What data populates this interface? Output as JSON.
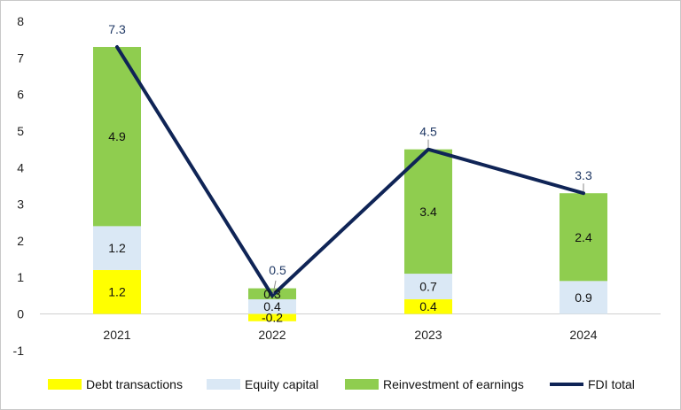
{
  "chart_data": {
    "type": "bar+line",
    "title": "",
    "xlabel": "",
    "ylabel": "",
    "ylim": [
      -1,
      8
    ],
    "yticks": [
      -1,
      0,
      1,
      2,
      3,
      4,
      5,
      6,
      7,
      8
    ],
    "categories": [
      "2021",
      "2022",
      "2023",
      "2024"
    ],
    "series": [
      {
        "name": "Debt transactions",
        "kind": "stacked-bar",
        "color": "#ffff00",
        "values": [
          1.2,
          -0.2,
          0.4,
          0.0
        ],
        "labels": [
          "1.2",
          "-0.2",
          "0.4",
          ""
        ]
      },
      {
        "name": "Equity capital",
        "kind": "stacked-bar",
        "color": "#dae8f5",
        "values": [
          1.2,
          0.4,
          0.7,
          0.9
        ],
        "labels": [
          "1.2",
          "0.4",
          "0.7",
          "0.9"
        ]
      },
      {
        "name": "Reinvestment of earnings",
        "kind": "stacked-bar",
        "color": "#8fcd4f",
        "values": [
          4.9,
          0.3,
          3.4,
          2.4
        ],
        "labels": [
          "4.9",
          "0.3",
          "3.4",
          "2.4"
        ]
      },
      {
        "name": "FDI total",
        "kind": "line",
        "color": "#0f2456",
        "values": [
          7.3,
          0.5,
          4.5,
          3.3
        ],
        "labels": [
          "7.3",
          "0.5",
          "4.5",
          "3.3"
        ]
      }
    ],
    "legend": "bottom"
  }
}
